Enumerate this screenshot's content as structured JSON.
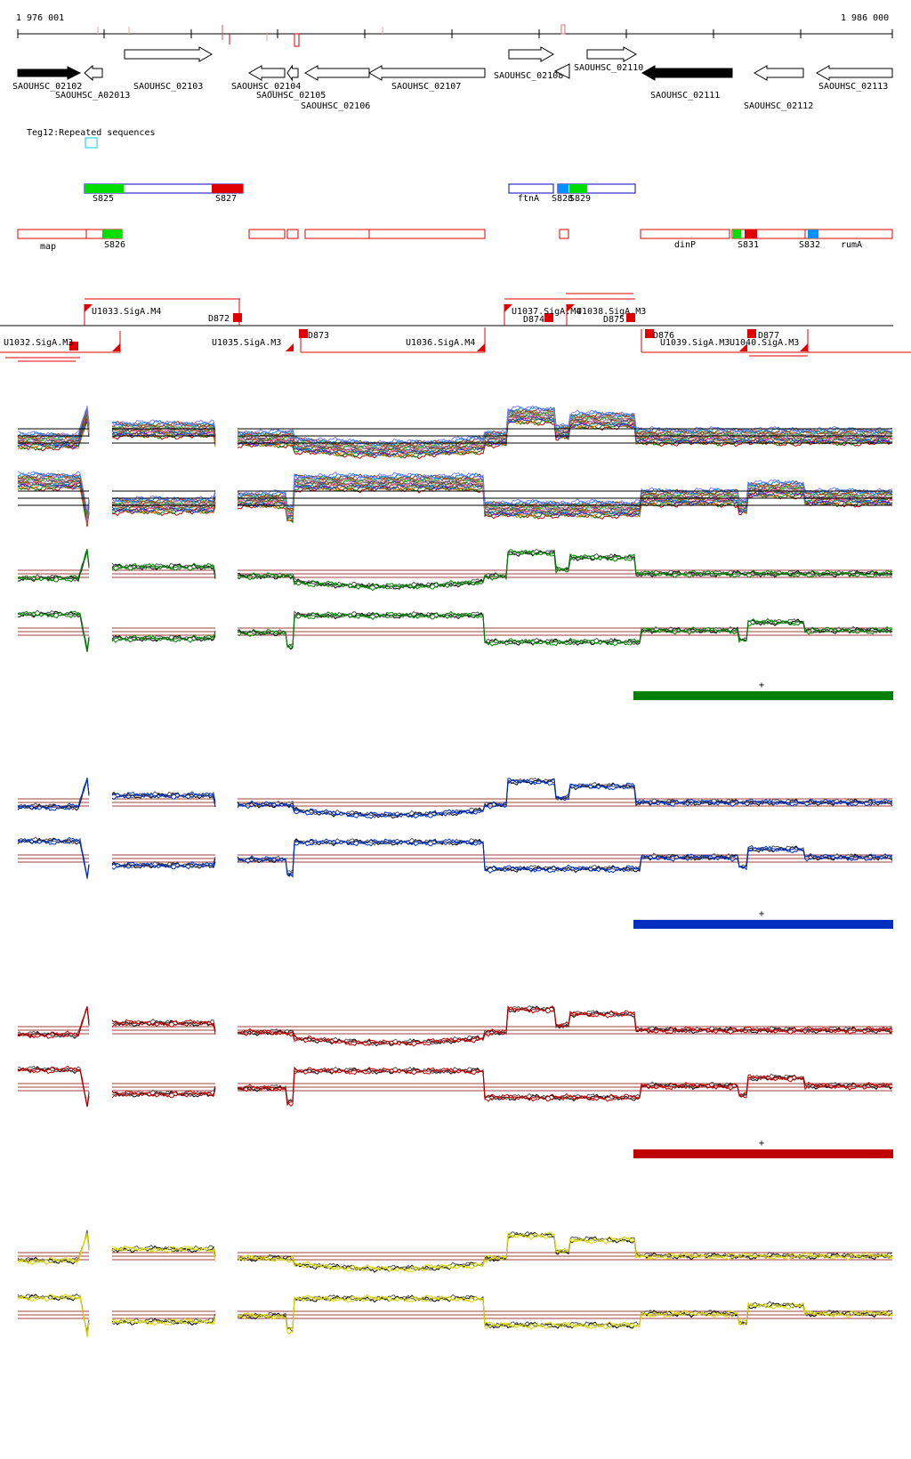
{
  "coords": {
    "start": "1 976 001",
    "end": "1 986 000"
  },
  "genes": [
    {
      "label": "SAOUHSC_02102",
      "strand": "+",
      "filled": true
    },
    {
      "label": "SAOUHSC_A02013",
      "strand": "-",
      "filled": false
    },
    {
      "label": "SAOUHSC_02103",
      "strand": "+",
      "filled": false
    },
    {
      "label": "SAOUHSC_02104",
      "strand": "-",
      "filled": false
    },
    {
      "label": "SAOUHSC_02105",
      "strand": "-",
      "filled": false
    },
    {
      "label": "SAOUHSC_02106",
      "strand": "-",
      "filled": false
    },
    {
      "label": "SAOUHSC_02107",
      "strand": "-",
      "filled": false
    },
    {
      "label": "SAOUHSC_02108",
      "strand": "+",
      "filled": false
    },
    {
      "label": "SAOUHSC_02110",
      "strand": "+",
      "filled": false
    },
    {
      "label": "SAOUHSC_02111",
      "strand": "-",
      "filled": true
    },
    {
      "label": "SAOUHSC_02112",
      "strand": "-",
      "filled": false
    },
    {
      "label": "SAOUHSC_02113",
      "strand": "-",
      "filled": false
    }
  ],
  "repeat_track": {
    "label": "Teg12:Repeated sequences"
  },
  "operons_top": [
    {
      "label": "S825"
    },
    {
      "label": "S827"
    },
    {
      "label": "ftnA"
    },
    {
      "label": "S828"
    },
    {
      "label": "S829"
    }
  ],
  "operons_bottom": [
    {
      "label": "map"
    },
    {
      "label": "S826"
    },
    {
      "label": "dinP"
    },
    {
      "label": "S831"
    },
    {
      "label": "S832"
    },
    {
      "label": "rumA"
    }
  ],
  "tus": [
    {
      "label": "U1033.SigA.M4"
    },
    {
      "label": "D872"
    },
    {
      "label": "U1037.SigA.M4"
    },
    {
      "label": "U1038.SigA.M3"
    },
    {
      "label": "D874"
    },
    {
      "label": "D875"
    },
    {
      "label": "U1032.SigA.M3"
    },
    {
      "label": "U1035.SigA.M3"
    },
    {
      "label": "D873"
    },
    {
      "label": "U1036.SigA.M4"
    },
    {
      "label": "D876"
    },
    {
      "label": "U1039.SigA.M3"
    },
    {
      "label": "D877"
    },
    {
      "label": "U1040.SigA.M3"
    }
  ],
  "panels": [
    {
      "color": "#008000",
      "strand_label": "+"
    },
    {
      "color": "#0030c0",
      "strand_label": "+"
    },
    {
      "color": "#c00000",
      "strand_label": "+"
    },
    {
      "color": "#d8d800",
      "strand_label": ""
    }
  ],
  "colors": {
    "feature_red": "#e00000",
    "operon_blue": "#0000c0",
    "s_green": "#00dd00",
    "s_blue": "#0090ff",
    "ref_line": "#a04040"
  }
}
